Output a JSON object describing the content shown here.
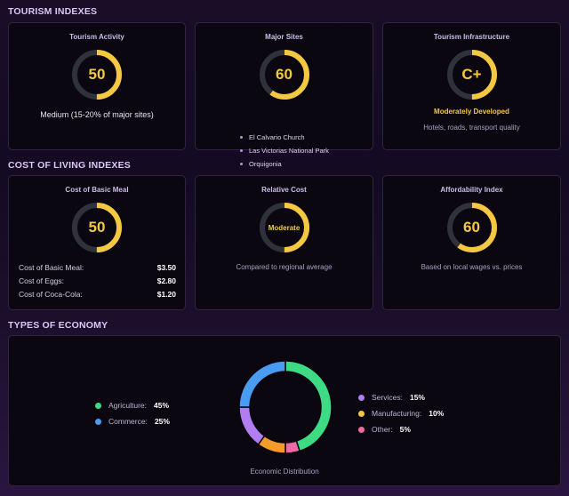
{
  "tourism": {
    "section_title": "TOURISM INDEXES",
    "activity": {
      "title": "Tourism Activity",
      "value": "50",
      "level": 0.5,
      "caption": "Medium (15-20% of major sites)"
    },
    "sites": {
      "title": "Major Sites",
      "value": "60",
      "level": 0.6,
      "items": [
        "El Calvario Church",
        "Las Victorias National Park",
        "Orquigonia"
      ]
    },
    "infrastructure": {
      "title": "Tourism Infrastructure",
      "value": "C+",
      "level": 0.5,
      "rating": "Moderately Developed",
      "caption": "Hotels, roads, transport quality"
    }
  },
  "cost": {
    "section_title": "COST OF LIVING INDEXES",
    "meal": {
      "title": "Cost of Basic Meal",
      "value": "50",
      "level": 0.5,
      "prices": [
        {
          "label": "Cost of Basic Meal:",
          "value": "$3.50"
        },
        {
          "label": "Cost of Eggs:",
          "value": "$2.80"
        },
        {
          "label": "Cost of Coca-Cola:",
          "value": "$1.20"
        }
      ]
    },
    "relative": {
      "title": "Relative Cost",
      "value": "Moderate",
      "level": 0.5,
      "caption": "Compared to regional average"
    },
    "affordability": {
      "title": "Affordability Index",
      "value": "60",
      "level": 0.6,
      "caption": "Based on local wages vs. prices"
    }
  },
  "economy": {
    "section_title": "TYPES OF ECONOMY",
    "caption": "Economic Distribution",
    "left_legend": [
      {
        "label": "Agriculture:",
        "pct": "45%",
        "color": "#3ddc84"
      },
      {
        "label": "Commerce:",
        "pct": "25%",
        "color": "#4a9cf0"
      }
    ],
    "right_legend": [
      {
        "label": "Services:",
        "pct": "15%",
        "color": "#b07ef0"
      },
      {
        "label": "Manufacturing:",
        "pct": "10%",
        "color": "#f5c842"
      },
      {
        "label": "Other:",
        "pct": "5%",
        "color": "#f06aa8"
      }
    ]
  },
  "chart_data": {
    "type": "pie",
    "categories": [
      "Agriculture",
      "Other",
      "Manufacturing",
      "Services",
      "Commerce"
    ],
    "values": [
      45,
      5,
      10,
      15,
      25
    ],
    "colors": [
      "#3ddc84",
      "#f06aa8",
      "#f59b2a",
      "#b07ef0",
      "#4a9cf0"
    ],
    "title": "Economic Distribution"
  },
  "theme": {
    "gauge_color": "#f5c842",
    "track_color": "#2f3238"
  }
}
